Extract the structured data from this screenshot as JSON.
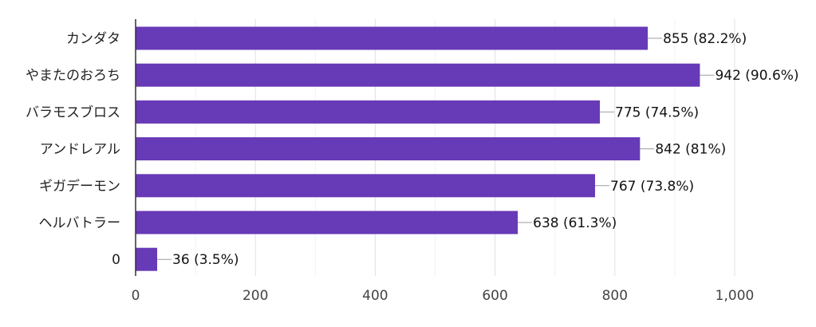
{
  "chart_data": {
    "type": "bar",
    "orientation": "horizontal",
    "categories": [
      "カンダタ",
      "やまたのおろち",
      "バラモスブロス",
      "アンドレアル",
      "ギガデーモン",
      "ヘルバトラー",
      "0"
    ],
    "values": [
      855,
      942,
      775,
      842,
      767,
      638,
      36
    ],
    "data_labels": [
      "855 (82.2%)",
      "942 (90.6%)",
      "775 (74.5%)",
      "842 (81%)",
      "767 (73.8%)",
      "638 (61.3%)",
      "36 (3.5%)"
    ],
    "xlim": [
      0,
      1000
    ],
    "x_ticks": [
      0,
      200,
      400,
      600,
      800,
      1000
    ],
    "x_tick_labels": [
      "0",
      "200",
      "400",
      "600",
      "800",
      "1,000"
    ],
    "title": "",
    "xlabel": "",
    "ylabel": "",
    "grid": true,
    "bar_color": "#673ab7"
  }
}
